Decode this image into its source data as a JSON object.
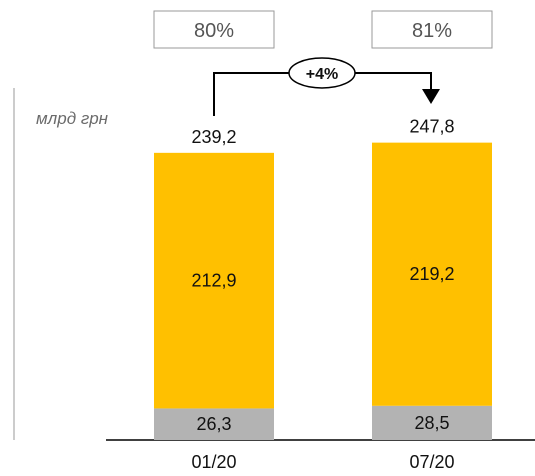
{
  "chart_data": {
    "type": "bar",
    "stacked": true,
    "unit_label": "млрд грн",
    "categories": [
      "01/20",
      "07/20"
    ],
    "series": [
      {
        "values": [
          26.3,
          28.5
        ],
        "labels": [
          "26,3",
          "28,5"
        ],
        "color": "#b3b3b3"
      },
      {
        "values": [
          212.9,
          219.2
        ],
        "labels": [
          "212,9",
          "219,2"
        ],
        "color": "#ffc000"
      }
    ],
    "totals": [
      239.2,
      247.8
    ],
    "total_labels": [
      "239,2",
      "247,8"
    ],
    "shares": [
      "80%",
      "81%"
    ],
    "growth": "+4%",
    "grid": false
  }
}
